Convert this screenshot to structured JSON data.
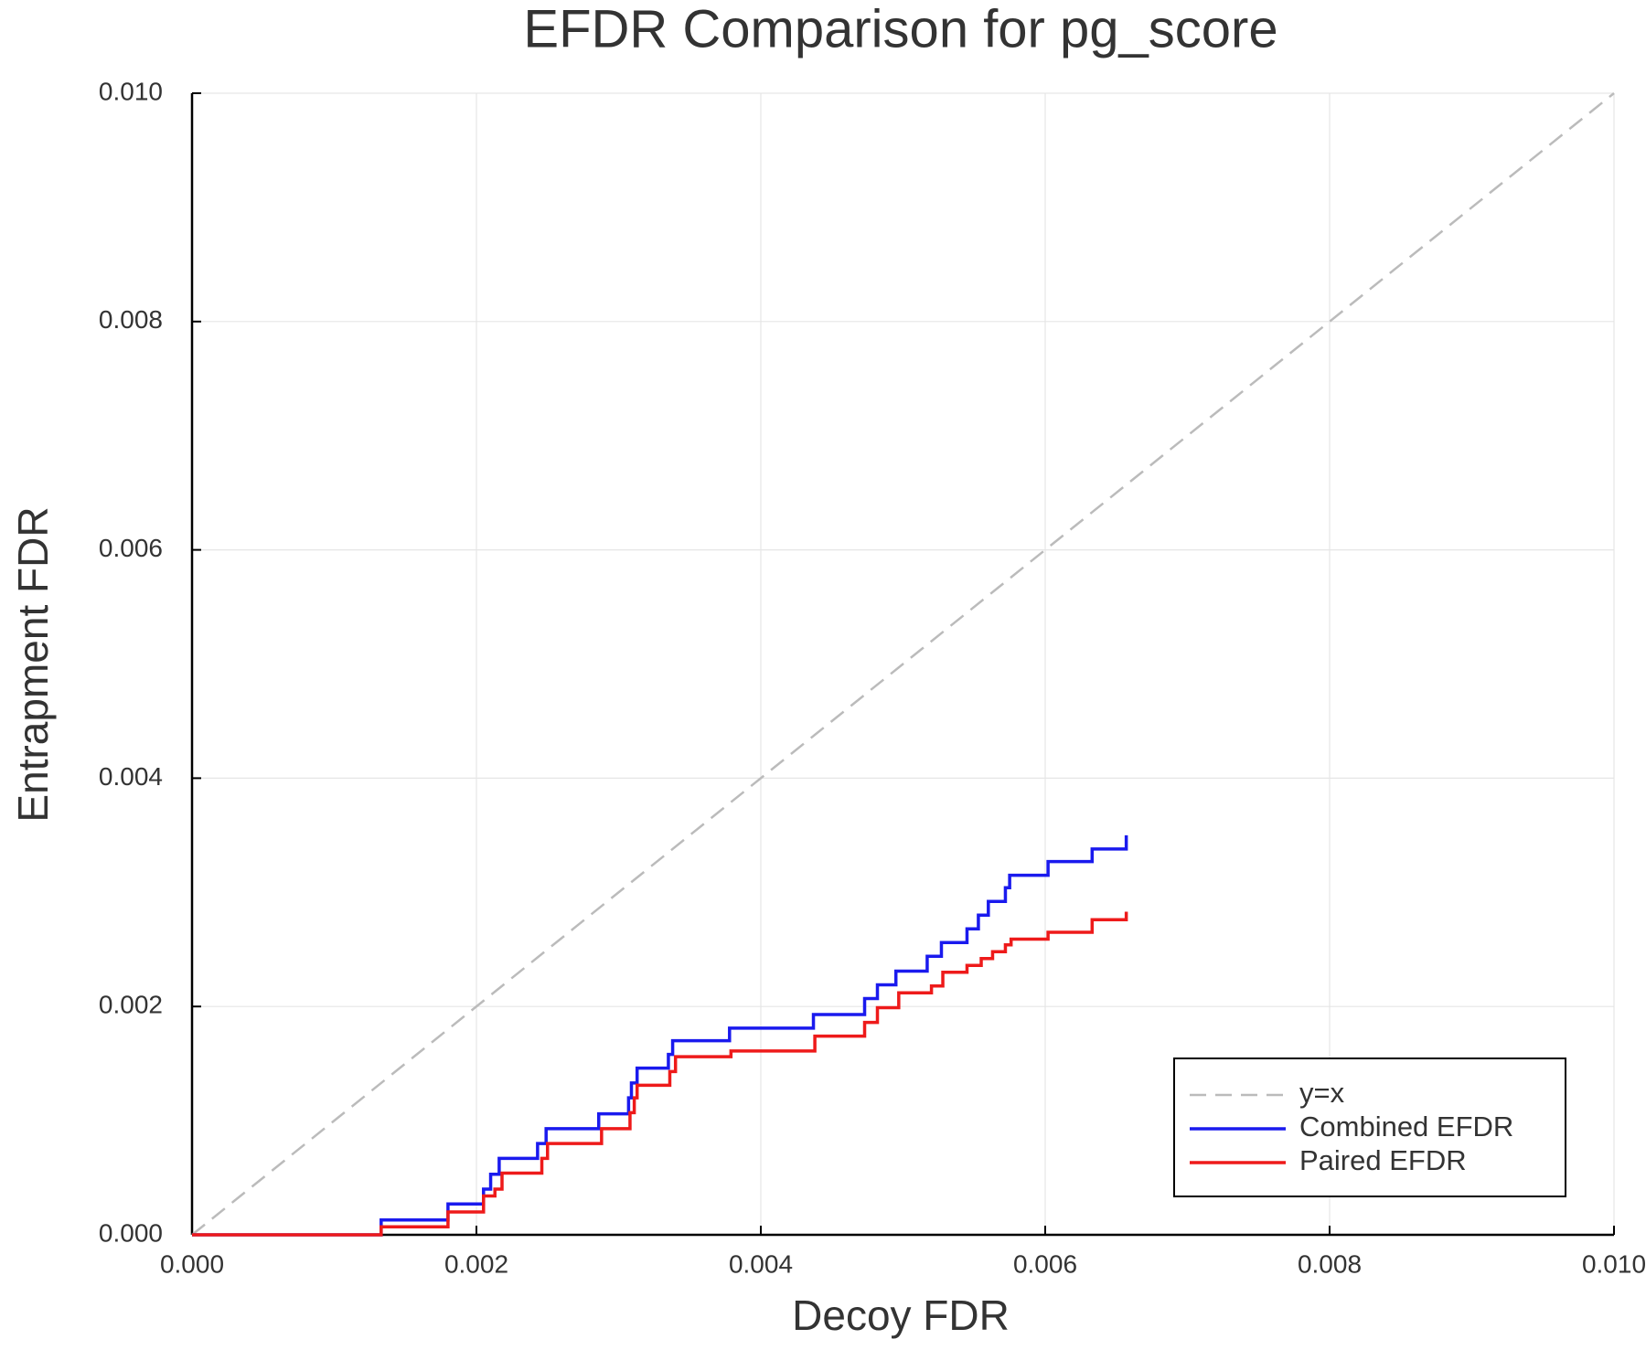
{
  "chart_data": {
    "type": "line",
    "title": "EFDR Comparison for pg_score",
    "x_label": "Decoy FDR",
    "y_label": "Entrapment FDR",
    "xlim": [
      0,
      0.01
    ],
    "ylim": [
      0,
      0.01
    ],
    "xticks": [
      {
        "value": 0,
        "label": "0.000"
      },
      {
        "value": 0.002,
        "label": "0.002"
      },
      {
        "value": 0.004,
        "label": "0.004"
      },
      {
        "value": 0.006,
        "label": "0.006"
      },
      {
        "value": 0.008,
        "label": "0.008"
      },
      {
        "value": 0.01,
        "label": "0.010"
      }
    ],
    "yticks": [
      {
        "value": 0,
        "label": "0.000"
      },
      {
        "value": 0.002,
        "label": "0.002"
      },
      {
        "value": 0.004,
        "label": "0.004"
      },
      {
        "value": 0.006,
        "label": "0.006"
      },
      {
        "value": 0.008,
        "label": "0.008"
      },
      {
        "value": 0.01,
        "label": "0.010"
      }
    ],
    "grid": true,
    "legend": "lower right",
    "series": [
      {
        "name": "y=x",
        "color": "#bbbbbb",
        "dashed": true,
        "step": false,
        "x": [
          0,
          0.01
        ],
        "values": [
          0,
          0.01
        ]
      },
      {
        "name": "Combined EFDR",
        "color": "#1a1aee",
        "dashed": false,
        "step": true,
        "x": [
          0,
          0.00133,
          0.0018,
          0.00205,
          0.0021,
          0.00216,
          0.00243,
          0.00249,
          0.00286,
          0.00307,
          0.00309,
          0.00313,
          0.00335,
          0.00338,
          0.00378,
          0.00437,
          0.00473,
          0.00482,
          0.00495,
          0.00517,
          0.00527,
          0.00545,
          0.00553,
          0.0056,
          0.00572,
          0.00575,
          0.00602,
          0.00633,
          0.00657
        ],
        "values": [
          0,
          0.00013,
          0.00027,
          0.0004,
          0.00053,
          0.00067,
          0.0008,
          0.00093,
          0.00106,
          0.0012,
          0.00133,
          0.00146,
          0.00158,
          0.0017,
          0.00181,
          0.00193,
          0.00207,
          0.00219,
          0.00231,
          0.00244,
          0.00256,
          0.00268,
          0.0028,
          0.00292,
          0.00304,
          0.00315,
          0.00327,
          0.00338,
          0.0035
        ]
      },
      {
        "name": "Paired EFDR",
        "color": "#ee1a1a",
        "dashed": false,
        "step": true,
        "x": [
          0,
          0.00133,
          0.0018,
          0.00205,
          0.00213,
          0.00218,
          0.00246,
          0.0025,
          0.00288,
          0.00308,
          0.00311,
          0.00313,
          0.00336,
          0.0034,
          0.00379,
          0.00438,
          0.00473,
          0.00482,
          0.00497,
          0.0052,
          0.00528,
          0.00545,
          0.00555,
          0.00563,
          0.00572,
          0.00576,
          0.00602,
          0.00633,
          0.00657
        ],
        "values": [
          0,
          7e-05,
          0.0002,
          0.00034,
          0.0004,
          0.00054,
          0.00067,
          0.0008,
          0.00093,
          0.00107,
          0.0012,
          0.00131,
          0.00143,
          0.00156,
          0.00161,
          0.00174,
          0.00186,
          0.00199,
          0.00212,
          0.00218,
          0.0023,
          0.00236,
          0.00242,
          0.00248,
          0.00254,
          0.00259,
          0.00265,
          0.00276,
          0.00283
        ]
      }
    ]
  }
}
